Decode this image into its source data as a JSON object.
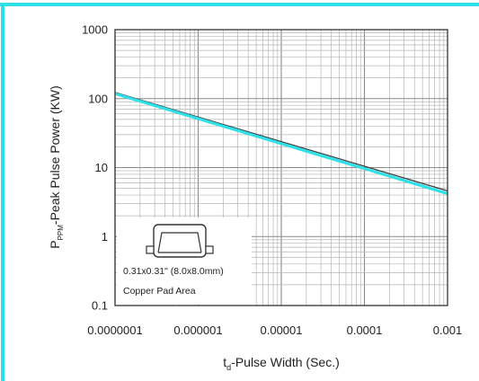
{
  "frame_color": "#2fe0e6",
  "chart_data": {
    "type": "line",
    "x_scale": "log",
    "y_scale": "log",
    "xlim": [
      1e-07,
      0.001
    ],
    "ylim": [
      0.1,
      1000
    ],
    "xticks": [
      1e-07,
      1e-06,
      1e-05,
      0.0001,
      0.001
    ],
    "xtick_labels": [
      "0.0000001",
      "0.000001",
      "0.00001",
      "0.0001",
      "0.001"
    ],
    "yticks": [
      0.1,
      1,
      10,
      100,
      1000
    ],
    "ytick_labels": [
      "0.1",
      "1",
      "10",
      "100",
      "1000"
    ],
    "xlabel": {
      "prefix": "t",
      "sub": "d",
      "rest": "-Pulse Width (Sec.)"
    },
    "ylabel": {
      "prefix": "P",
      "sub": "PPM",
      "rest": "-Peak Pulse Power (KW)"
    },
    "grid": true,
    "series": [
      {
        "color": "#2fe0e6",
        "x": [
          1e-07,
          0.001
        ],
        "y": [
          118,
          4.2
        ]
      },
      {
        "color": "#3a3a3a",
        "x": [
          1e-07,
          0.001
        ],
        "y": [
          123,
          4.6
        ]
      }
    ],
    "inset": {
      "line1": "0.31x0.31\" (8.0x8.0mm)",
      "line2": "Copper Pad Area"
    }
  }
}
